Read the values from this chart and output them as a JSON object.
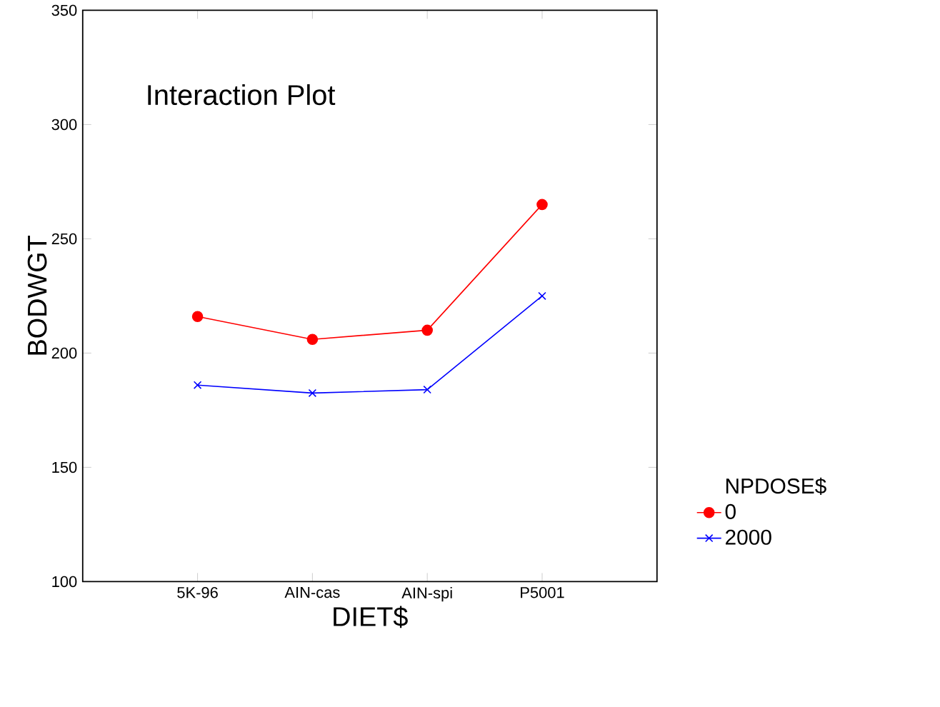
{
  "chart_data": {
    "type": "line",
    "title": "Interaction Plot",
    "xlabel": "DIET$",
    "ylabel": "BODWGT",
    "legend_title": "NPDOSE$",
    "categories": [
      "5K-96",
      "AIN-cas",
      "AIN-spi",
      "P5001"
    ],
    "series": [
      {
        "name": "0",
        "color": "#ff0000",
        "marker": "circle",
        "values": [
          216,
          206,
          210,
          265
        ]
      },
      {
        "name": "2000",
        "color": "#0000ff",
        "marker": "cross",
        "values": [
          186,
          182.5,
          184,
          225
        ]
      }
    ],
    "ylim": [
      100,
      350
    ],
    "yticks": [
      100,
      150,
      200,
      250,
      300,
      350
    ],
    "legend": "right",
    "grid": false
  }
}
